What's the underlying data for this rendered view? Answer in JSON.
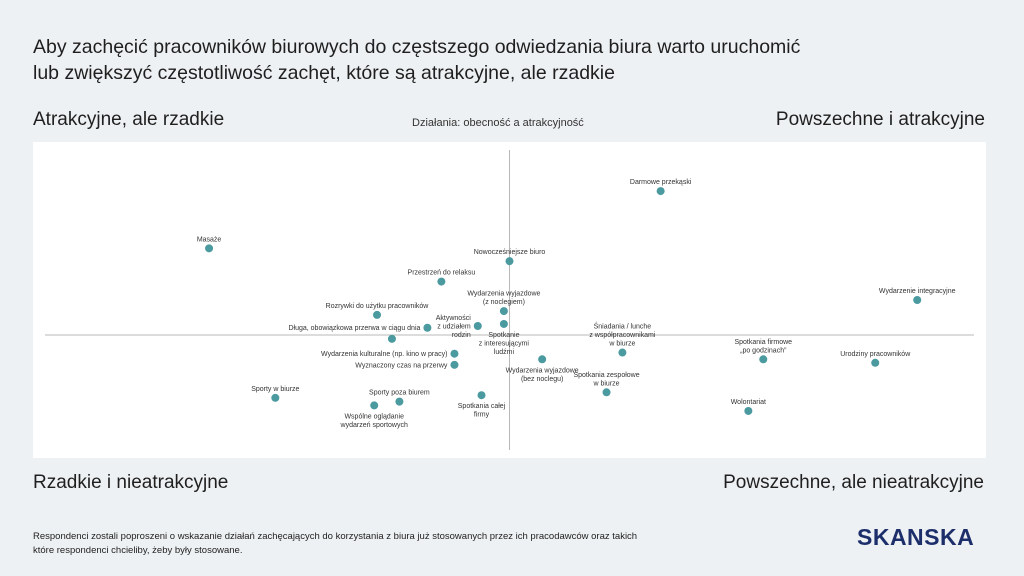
{
  "headline": {
    "line1": "Aby zachęcić pracowników biurowych do częstszego odwiedzania biura warto uruchomić",
    "line2": "lub zwiększyć częstotliwość zachęt, które są atrakcyjne, ale rzadkie"
  },
  "quadrants": {
    "top_left": "Atrakcyjne, ale rzadkie",
    "top_right": "Powszechne i atrakcyjne",
    "bottom_left": "Rzadkie i nieatrakcyjne",
    "bottom_right": "Powszechne, ale nieatrakcyjne"
  },
  "footnote": {
    "line1": "Respondenci zostali poproszeni o wskazanie działań zachęcających do korzystania z biura już stosowanych przez ich pracodawców oraz takich",
    "line2": "które respondenci chcieliby, żeby były stosowane."
  },
  "logo": "SKANSKA",
  "colors": {
    "point": "#4a9aa0",
    "axis": "#b8b8b8",
    "logo": "#1d2f6b"
  },
  "chart_data": {
    "type": "scatter",
    "title": "Działania: obecność a atrakcyjność",
    "xlabel": "",
    "ylabel": "",
    "xlim": [
      0,
      100
    ],
    "ylim": [
      0,
      100
    ],
    "crosshair": [
      50,
      38
    ],
    "grid": false,
    "points": [
      {
        "label": [
          "Darmowe przekąski"
        ],
        "x": 66.2,
        "y": 87.3,
        "align": "above"
      },
      {
        "label": [
          "Masaże"
        ],
        "x": 17.8,
        "y": 67.7,
        "align": "above"
      },
      {
        "label": [
          "Nowocześniejsze biuro"
        ],
        "x": 50.0,
        "y": 63.3,
        "align": "above"
      },
      {
        "label": [
          "Przestrzeń do relaksu"
        ],
        "x": 42.7,
        "y": 56.3,
        "align": "above"
      },
      {
        "label": [
          "Wydarzenie integracyjne"
        ],
        "x": 93.7,
        "y": 50.0,
        "align": "above"
      },
      {
        "label": [
          "Wydarzenia wyjazdowe",
          "(z noclegiem)"
        ],
        "x": 49.4,
        "y": 46.2,
        "align": "above"
      },
      {
        "label": [
          "Rozrywki do użytku pracowników"
        ],
        "x": 35.8,
        "y": 44.9,
        "align": "above"
      },
      {
        "label": [
          "Aktywności",
          "z udziałem",
          "rodzin"
        ],
        "x": 46.6,
        "y": 41.1,
        "align": "left"
      },
      {
        "label": [
          "Spotkanie",
          "z interesującymi",
          "ludźmi"
        ],
        "x": 49.4,
        "y": 41.8,
        "align": "below"
      },
      {
        "label": [
          "Długa, obowiązkowa przerwa w ciągu dnia"
        ],
        "x": 41.2,
        "y": 40.5,
        "align": "left"
      },
      {
        "label": [],
        "x": 37.4,
        "y": 36.7,
        "align": "above"
      },
      {
        "label": [
          "Śniadania / lunche",
          "z współpracownikami",
          "w biurze"
        ],
        "x": 62.1,
        "y": 32.0,
        "align": "above"
      },
      {
        "label": [
          "Wydarzenia kulturalne (np. kino w pracy)"
        ],
        "x": 44.1,
        "y": 31.6,
        "align": "left"
      },
      {
        "label": [
          "Wydarzenia wyjazdowe",
          "(bez noclegu)"
        ],
        "x": 53.5,
        "y": 29.7,
        "align": "below"
      },
      {
        "label": [
          "Spotkania firmowe",
          "„po godzinach”"
        ],
        "x": 77.2,
        "y": 29.7,
        "align": "above"
      },
      {
        "label": [
          "Urodziny pracowników"
        ],
        "x": 89.2,
        "y": 28.5,
        "align": "above"
      },
      {
        "label": [
          "Wyznaczony czas na przerwy"
        ],
        "x": 44.1,
        "y": 27.8,
        "align": "left"
      },
      {
        "label": [
          "Spotkania zespołowe",
          "w biurze"
        ],
        "x": 60.4,
        "y": 18.4,
        "align": "above"
      },
      {
        "label": [
          "Sporty w biurze"
        ],
        "x": 24.9,
        "y": 16.5,
        "align": "above"
      },
      {
        "label": [
          "Spotkania całej",
          "firmy"
        ],
        "x": 47.0,
        "y": 17.4,
        "align": "below"
      },
      {
        "label": [
          "Sporty poza biurem"
        ],
        "x": 38.2,
        "y": 15.2,
        "align": "above"
      },
      {
        "label": [
          "Wspólne oglądanie",
          "wydarzeń sportowych"
        ],
        "x": 35.5,
        "y": 13.9,
        "align": "below"
      },
      {
        "label": [
          "Wolontariat"
        ],
        "x": 75.6,
        "y": 12.0,
        "align": "above"
      }
    ]
  }
}
